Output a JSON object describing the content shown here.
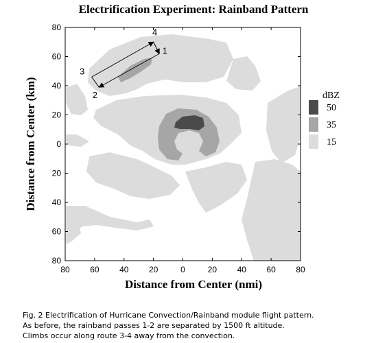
{
  "title": "Electrification Experiment: Rainband Pattern",
  "chart_data": {
    "type": "contour-map",
    "xlabel": "Distance from Center (nmi)",
    "ylabel": "Distance from Center (km)",
    "x_ticks": [
      "80",
      "60",
      "40",
      "20",
      "0",
      "20",
      "40",
      "60",
      "80"
    ],
    "y_ticks": [
      "80",
      "60",
      "40",
      "20",
      "0",
      "20",
      "40",
      "60",
      "80"
    ],
    "xlim": [
      -80,
      80
    ],
    "ylim": [
      -80,
      80
    ],
    "legend": {
      "title": "dBZ",
      "placement": "right",
      "items": [
        {
          "label": "50",
          "color": "#4a4a4a"
        },
        {
          "label": "35",
          "color": "#a6a6a6"
        },
        {
          "label": "15",
          "color": "#dcdcdc"
        }
      ]
    },
    "flight_route": {
      "waypoints": [
        {
          "label": "1",
          "x": -16,
          "y": 62
        },
        {
          "label": "2",
          "x": -57,
          "y": 39
        },
        {
          "label": "3",
          "x": -62,
          "y": 46
        },
        {
          "label": "4",
          "x": -20,
          "y": 70
        }
      ]
    }
  },
  "caption": [
    "Fig. 2 Electrification of Hurricane Convection/Rainband module flight pattern.",
    "As before, the rainband passes 1-2 are separated by 1500 ft altitude.",
    "Climbs occur along route 3-4 away from the convection."
  ],
  "colors": {
    "light": "#dcdcdc",
    "medium": "#a6a6a6",
    "dark": "#4a4a4a"
  }
}
